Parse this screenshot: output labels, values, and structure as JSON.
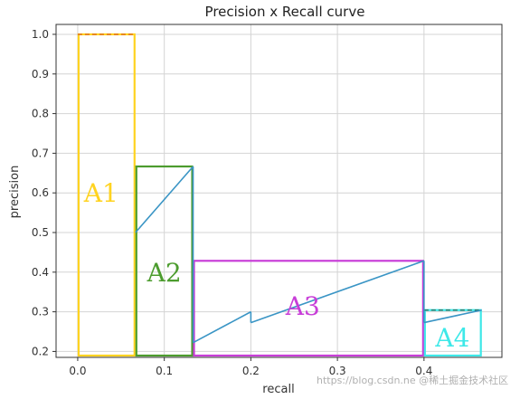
{
  "chart_data": {
    "type": "line",
    "title": "Precision x Recall curve",
    "xlabel": "recall",
    "ylabel": "precision",
    "xlim": [
      -0.025,
      0.49
    ],
    "ylim": [
      0.185,
      1.025
    ],
    "xticks": [
      0.0,
      0.1,
      0.2,
      0.3,
      0.4
    ],
    "yticks": [
      0.2,
      0.3,
      0.4,
      0.5,
      0.6,
      0.7,
      0.8,
      0.9,
      1.0
    ],
    "grid": true,
    "curve_color": "#3a95c5",
    "segments": [
      {
        "x": [
          0.0667,
          0.1333
        ],
        "y": [
          0.5,
          0.6667
        ]
      },
      {
        "x": [
          0.1333,
          0.2
        ],
        "y": [
          0.2222,
          0.3
        ]
      },
      {
        "x": [
          0.2,
          0.4
        ],
        "y": [
          0.2727,
          0.4286
        ]
      },
      {
        "x": [
          0.4,
          0.4667
        ],
        "y": [
          0.2727,
          0.3043
        ]
      }
    ],
    "interpolated_precision": [
      {
        "x": [
          0.0,
          0.0667
        ],
        "y": 1.0
      },
      {
        "x": [
          0.0667,
          0.1333
        ],
        "y": 0.6667
      },
      {
        "x": [
          0.1333,
          0.4
        ],
        "y": 0.4286
      },
      {
        "x": [
          0.4,
          0.4667
        ],
        "y": 0.3043
      }
    ],
    "areas": [
      {
        "label": "A1",
        "x0": 0.0,
        "x1": 0.0667,
        "y": 1.0,
        "color": "#ffd320",
        "dash_color": "#e07020",
        "label_x": 0.027,
        "label_y": 0.6
      },
      {
        "label": "A2",
        "x0": 0.0667,
        "x1": 0.1333,
        "y": 0.6667,
        "color": "#4c9c2e",
        "dash_color": "#4c9c2e",
        "label_x": 0.1,
        "label_y": 0.4
      },
      {
        "label": "A3",
        "x0": 0.1333,
        "x1": 0.4,
        "y": 0.4286,
        "color": "#c83ed8",
        "dash_color": "#c83ed8",
        "label_x": 0.26,
        "label_y": 0.315
      },
      {
        "label": "A4",
        "x0": 0.4,
        "x1": 0.4667,
        "y": 0.3043,
        "color": "#3ee8e8",
        "dash_color": "#2a7a6a",
        "label_x": 0.433,
        "label_y": 0.235
      }
    ]
  },
  "watermark": "https://blog.csdn.ne @稀土掘金技术社区"
}
